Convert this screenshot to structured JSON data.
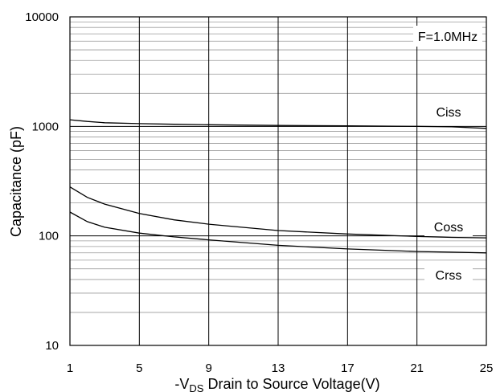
{
  "chart_data": {
    "type": "line",
    "title": "",
    "xlabel_parts": {
      "prefix": "-V",
      "subscript": "DS",
      "suffix": " Drain to Source Voltage(V)"
    },
    "ylabel": "Capacitance (pF)",
    "annotation": "F=1.0MHz",
    "x_ticks": [
      1,
      5,
      9,
      13,
      17,
      21,
      25
    ],
    "x_tick_labels": [
      "1",
      "5",
      "9",
      "13",
      "17",
      "21",
      "25"
    ],
    "y_ticks": [
      10,
      100,
      1000,
      10000
    ],
    "y_tick_labels": [
      "10",
      "100",
      "1000",
      "10000"
    ],
    "xlim": [
      1,
      25
    ],
    "ylim": [
      10,
      10000
    ],
    "yscale": "log",
    "grid": true,
    "series": [
      {
        "name": "Ciss",
        "x": [
          1,
          2,
          3,
          5,
          7,
          9,
          13,
          17,
          21,
          23,
          25
        ],
        "y": [
          1150,
          1110,
          1080,
          1060,
          1045,
          1035,
          1020,
          1010,
          1000,
          990,
          960
        ]
      },
      {
        "name": "Coss",
        "x": [
          1,
          2,
          3,
          5,
          7,
          9,
          13,
          17,
          21,
          23,
          25
        ],
        "y": [
          280,
          225,
          195,
          160,
          140,
          128,
          112,
          104,
          99,
          97,
          96
        ]
      },
      {
        "name": "Crss",
        "x": [
          1,
          2,
          3,
          5,
          7,
          9,
          13,
          17,
          21,
          23,
          25
        ],
        "y": [
          165,
          135,
          120,
          106,
          98,
          92,
          82,
          76,
          72,
          71,
          70
        ]
      }
    ]
  }
}
